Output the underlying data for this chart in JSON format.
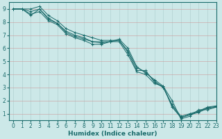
{
  "background_color": "#cce8e8",
  "grid_color": "#b0cccc",
  "line_color": "#1a6b6b",
  "xlabel": "Humidex (Indice chaleur)",
  "xlim": [
    -0.5,
    23
  ],
  "ylim": [
    0.5,
    9.5
  ],
  "xticks": [
    0,
    1,
    2,
    3,
    4,
    5,
    6,
    7,
    8,
    9,
    10,
    11,
    12,
    13,
    14,
    15,
    16,
    17,
    18,
    19,
    20,
    21,
    22,
    23
  ],
  "yticks": [
    1,
    2,
    3,
    4,
    5,
    6,
    7,
    8,
    9
  ],
  "lines": [
    {
      "x": [
        0,
        1,
        2,
        3,
        4,
        5,
        6,
        7,
        8,
        9,
        10,
        11,
        12,
        13,
        14,
        15,
        16,
        17,
        18,
        19,
        20,
        21,
        22,
        23
      ],
      "y": [
        9.0,
        9.0,
        9.0,
        9.2,
        8.5,
        8.1,
        7.5,
        7.2,
        7.0,
        6.8,
        6.6,
        6.6,
        6.6,
        5.8,
        4.5,
        4.2,
        3.5,
        3.0,
        1.7,
        0.8,
        1.0,
        1.2,
        1.5,
        1.6
      ]
    },
    {
      "x": [
        0,
        1,
        2,
        3,
        4,
        5,
        6,
        7,
        8,
        9,
        10,
        11,
        12,
        13,
        14,
        15,
        16,
        17,
        18,
        19,
        20,
        21,
        22,
        23
      ],
      "y": [
        9.0,
        9.0,
        8.8,
        9.0,
        8.3,
        7.9,
        7.3,
        7.0,
        6.8,
        6.5,
        6.4,
        6.5,
        6.5,
        5.5,
        4.2,
        4.0,
        3.3,
        3.1,
        1.5,
        0.7,
        0.9,
        1.1,
        1.4,
        1.5
      ]
    },
    {
      "x": [
        0,
        1,
        2,
        3,
        4,
        5,
        6,
        7,
        8,
        9,
        10,
        11,
        12,
        13,
        14,
        15,
        16,
        17,
        18,
        19,
        20,
        21,
        22,
        23
      ],
      "y": [
        9.0,
        9.0,
        8.6,
        8.8,
        8.1,
        7.8,
        7.1,
        6.8,
        6.6,
        6.3,
        6.3,
        6.5,
        6.7,
        6.0,
        4.6,
        4.1,
        3.6,
        3.1,
        2.0,
        0.6,
        0.8,
        1.3,
        1.3,
        1.5
      ]
    },
    {
      "x": [
        0,
        1,
        2,
        3,
        4,
        5,
        6,
        7,
        8,
        9,
        10,
        11,
        12,
        13,
        14,
        15,
        16,
        17,
        18,
        19,
        20,
        21,
        22,
        23
      ],
      "y": [
        9.0,
        9.0,
        8.5,
        9.0,
        8.2,
        7.9,
        7.2,
        6.9,
        6.7,
        6.5,
        6.5,
        6.5,
        6.6,
        5.7,
        4.3,
        4.3,
        3.4,
        3.0,
        1.6,
        0.7,
        0.95,
        1.15,
        1.45,
        1.55
      ]
    }
  ],
  "figsize": [
    3.2,
    2.0
  ],
  "dpi": 100,
  "tick_fontsize": 5.5,
  "xlabel_fontsize": 6.5
}
